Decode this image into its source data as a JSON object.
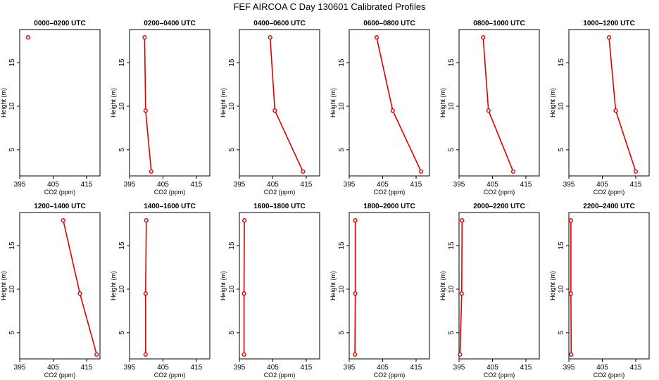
{
  "title": "FEF AIRCOA C  Day 130601  Calibrated Profiles",
  "colors": {
    "series": "#dd0000",
    "axis": "#000000"
  },
  "chart_data": [
    {
      "type": "line",
      "title": "0000–0200 UTC",
      "xlabel": "CO2 (ppm)",
      "ylabel": "Height (m)",
      "xlim": [
        395,
        419
      ],
      "ylim": [
        2,
        18.8
      ],
      "x_ticks": [
        "395",
        "405",
        "415"
      ],
      "y_ticks": [
        "5",
        "10",
        "15"
      ],
      "points": [
        {
          "x": 397.5,
          "y": 17.9
        }
      ]
    },
    {
      "type": "line",
      "title": "0200–0400 UTC",
      "xlabel": "CO2 (ppm)",
      "ylabel": "Height (m)",
      "xlim": [
        395,
        419
      ],
      "ylim": [
        2,
        18.8
      ],
      "x_ticks": [
        "395",
        "405",
        "415"
      ],
      "y_ticks": [
        "5",
        "10",
        "15"
      ],
      "points": [
        {
          "x": 399.5,
          "y": 17.9
        },
        {
          "x": 399.8,
          "y": 9.5
        },
        {
          "x": 401.5,
          "y": 2.5
        }
      ]
    },
    {
      "type": "line",
      "title": "0400–0600 UTC",
      "xlabel": "CO2 (ppm)",
      "ylabel": "Height (m)",
      "xlim": [
        395,
        419
      ],
      "ylim": [
        2,
        18.8
      ],
      "x_ticks": [
        "395",
        "405",
        "415"
      ],
      "y_ticks": [
        "5",
        "10",
        "15"
      ],
      "points": [
        {
          "x": 404.2,
          "y": 17.9
        },
        {
          "x": 405.6,
          "y": 9.5
        },
        {
          "x": 414,
          "y": 2.5
        }
      ]
    },
    {
      "type": "line",
      "title": "0600–0800 UTC",
      "xlabel": "CO2 (ppm)",
      "ylabel": "Height (m)",
      "xlim": [
        395,
        419
      ],
      "ylim": [
        2,
        18.8
      ],
      "x_ticks": [
        "395",
        "405",
        "415"
      ],
      "y_ticks": [
        "5",
        "10",
        "15"
      ],
      "points": [
        {
          "x": 403.2,
          "y": 17.9
        },
        {
          "x": 408,
          "y": 9.5
        },
        {
          "x": 416.5,
          "y": 2.5
        }
      ]
    },
    {
      "type": "line",
      "title": "0800–1000 UTC",
      "xlabel": "CO2 (ppm)",
      "ylabel": "Height (m)",
      "xlim": [
        395,
        419
      ],
      "ylim": [
        2,
        18.8
      ],
      "x_ticks": [
        "395",
        "405",
        "415"
      ],
      "y_ticks": [
        "5",
        "10",
        "15"
      ],
      "points": [
        {
          "x": 402.2,
          "y": 17.9
        },
        {
          "x": 403.8,
          "y": 9.5
        },
        {
          "x": 411.2,
          "y": 2.5
        }
      ]
    },
    {
      "type": "line",
      "title": "1000–1200 UTC",
      "xlabel": "CO2 (ppm)",
      "ylabel": "Height (m)",
      "xlim": [
        395,
        419
      ],
      "ylim": [
        2,
        18.8
      ],
      "x_ticks": [
        "395",
        "405",
        "415"
      ],
      "y_ticks": [
        "5",
        "10",
        "15"
      ],
      "points": [
        {
          "x": 407,
          "y": 17.9
        },
        {
          "x": 409,
          "y": 9.5
        },
        {
          "x": 415,
          "y": 2.5
        }
      ]
    },
    {
      "type": "line",
      "title": "1200–1400 UTC",
      "xlabel": "CO2 (ppm)",
      "ylabel": "Height (m)",
      "xlim": [
        395,
        419
      ],
      "ylim": [
        2,
        18.8
      ],
      "x_ticks": [
        "395",
        "405",
        "415"
      ],
      "y_ticks": [
        "5",
        "10",
        "15"
      ],
      "points": [
        {
          "x": 408,
          "y": 17.9
        },
        {
          "x": 413,
          "y": 9.5
        },
        {
          "x": 418,
          "y": 2.5
        }
      ]
    },
    {
      "type": "line",
      "title": "1400–1600 UTC",
      "xlabel": "CO2 (ppm)",
      "ylabel": "Height (m)",
      "xlim": [
        395,
        419
      ],
      "ylim": [
        2,
        18.8
      ],
      "x_ticks": [
        "395",
        "405",
        "415"
      ],
      "y_ticks": [
        "5",
        "10",
        "15"
      ],
      "points": [
        {
          "x": 400,
          "y": 17.9
        },
        {
          "x": 399.8,
          "y": 9.5
        },
        {
          "x": 399.8,
          "y": 2.5
        }
      ]
    },
    {
      "type": "line",
      "title": "1600–1800 UTC",
      "xlabel": "CO2 (ppm)",
      "ylabel": "Height (m)",
      "xlim": [
        395,
        419
      ],
      "ylim": [
        2,
        18.8
      ],
      "x_ticks": [
        "395",
        "405",
        "415"
      ],
      "y_ticks": [
        "5",
        "10",
        "15"
      ],
      "points": [
        {
          "x": 396.5,
          "y": 17.9
        },
        {
          "x": 396.4,
          "y": 9.5
        },
        {
          "x": 396.4,
          "y": 2.5
        }
      ]
    },
    {
      "type": "line",
      "title": "1800–2000 UTC",
      "xlabel": "CO2 (ppm)",
      "ylabel": "Height (m)",
      "xlim": [
        395,
        419
      ],
      "ylim": [
        2,
        18.8
      ],
      "x_ticks": [
        "395",
        "405",
        "415"
      ],
      "y_ticks": [
        "5",
        "10",
        "15"
      ],
      "points": [
        {
          "x": 396.8,
          "y": 17.9
        },
        {
          "x": 396.8,
          "y": 9.5
        },
        {
          "x": 396.7,
          "y": 2.5
        }
      ]
    },
    {
      "type": "line",
      "title": "2000–2200 UTC",
      "xlabel": "CO2 (ppm)",
      "ylabel": "Height (m)",
      "xlim": [
        395,
        419
      ],
      "ylim": [
        2,
        18.8
      ],
      "x_ticks": [
        "395",
        "405",
        "415"
      ],
      "y_ticks": [
        "5",
        "10",
        "15"
      ],
      "points": [
        {
          "x": 395.9,
          "y": 17.9
        },
        {
          "x": 395.8,
          "y": 9.5
        },
        {
          "x": 395.3,
          "y": 2.5
        }
      ]
    },
    {
      "type": "line",
      "title": "2200–2400 UTC",
      "xlabel": "CO2 (ppm)",
      "ylabel": "Height (m)",
      "xlim": [
        395,
        419
      ],
      "ylim": [
        2,
        18.8
      ],
      "x_ticks": [
        "395",
        "405",
        "415"
      ],
      "y_ticks": [
        "5",
        "10",
        "15"
      ],
      "points": [
        {
          "x": 395.6,
          "y": 17.9
        },
        {
          "x": 395.6,
          "y": 9.5
        },
        {
          "x": 395.7,
          "y": 2.5
        }
      ]
    }
  ]
}
